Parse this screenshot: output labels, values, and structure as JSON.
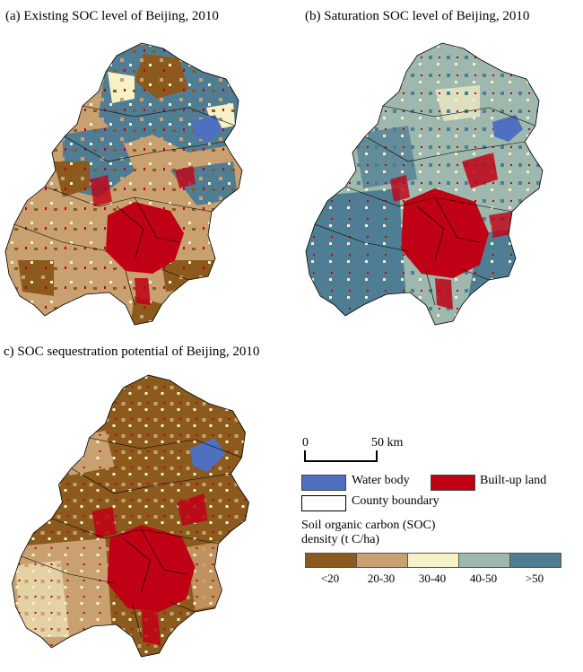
{
  "panels": {
    "a": {
      "title": "(a) Existing SOC level of Beijing, 2010"
    },
    "b": {
      "title": "(b) Saturation SOC level of Beijing, 2010"
    },
    "c": {
      "title": "c) SOC sequestration potential of Beijing, 2010"
    }
  },
  "scale_bar": {
    "start": "0",
    "end": "50 km"
  },
  "legend": {
    "water": "Water body",
    "builtup": "Built-up land",
    "county": "County boundary",
    "soc_title_line1": "Soil organic carbon (SOC)",
    "soc_title_line2": "density (t C/ha)",
    "classes": [
      "<20",
      "20-30",
      "30-40",
      "40-50",
      ">50"
    ]
  },
  "colors": {
    "lt20": "#8b5a1c",
    "c20_30": "#c9a070",
    "c30_40": "#f6f1c6",
    "c40_50": "#9fb8ad",
    "gt50": "#4f7e94",
    "water": "#4f6fc0",
    "builtup": "#c00014",
    "boundary": "#000000"
  }
}
